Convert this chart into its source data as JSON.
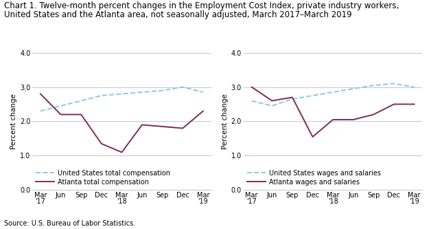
{
  "title_line1": "Chart 1. Twelve-month percent changes in the Employment Cost Index, private industry workers,",
  "title_line2": "United States and the Atlanta area, not seasonally adjusted, March 2017–March 2019",
  "source": "Source: U.S. Bureau of Labor Statistics.",
  "x_labels": [
    "Mar\n'17",
    "Jun",
    "Sep",
    "Dec",
    "Mar\n'18",
    "Jun",
    "Sep",
    "Dec",
    "Mar\n'19"
  ],
  "chart1": {
    "ylabel": "Percent change",
    "us_total_comp": [
      2.3,
      2.45,
      2.6,
      2.75,
      2.8,
      2.85,
      2.9,
      3.0,
      2.85
    ],
    "atl_total_comp": [
      2.8,
      2.2,
      2.2,
      1.35,
      1.1,
      1.9,
      1.85,
      1.8,
      2.3
    ],
    "legend1": "United States total compensation",
    "legend2": "Atlanta total compensation"
  },
  "chart2": {
    "ylabel": "Percent change",
    "us_wages_sal": [
      2.6,
      2.45,
      2.65,
      2.75,
      2.85,
      2.95,
      3.05,
      3.1,
      3.0
    ],
    "atl_wages_sal": [
      3.0,
      2.6,
      2.7,
      1.55,
      2.05,
      2.05,
      2.2,
      2.5,
      2.5
    ],
    "legend1": "United States wages and salaries",
    "legend2": "Atlanta wages and salaries"
  },
  "ylim": [
    0.0,
    4.0
  ],
  "yticks": [
    0.0,
    1.0,
    2.0,
    3.0,
    4.0
  ],
  "line_color_us": "#92C6E0",
  "line_color_atl": "#7B2D52",
  "bg_color": "#ffffff",
  "grid_color": "#bbbbbb",
  "title_fontsize": 8.5,
  "label_fontsize": 7.5,
  "tick_fontsize": 7.0,
  "legend_fontsize": 7.0
}
